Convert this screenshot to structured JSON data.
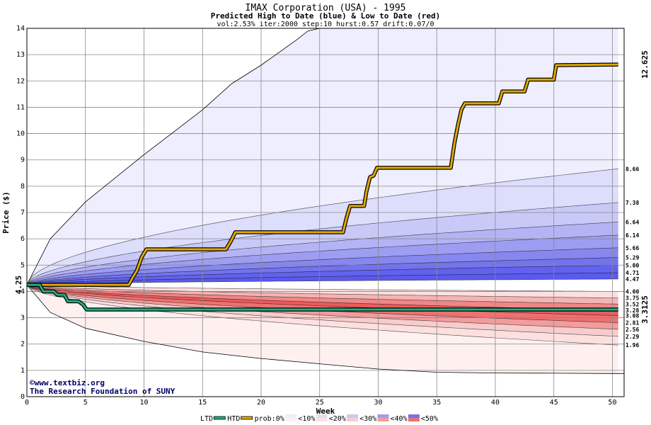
{
  "chart_data": {
    "type": "area",
    "title": "IMAX Corporation (USA) - 1995",
    "subtitle": "Predicted High to Date (blue) &  Low to Date (red)",
    "params": "vol:2.53% iter:2000 step:10 hurst:0.57 drift:0.07/0",
    "xlabel": "Week",
    "ylabel": "Price ($)",
    "xlim": [
      0,
      51
    ],
    "ylim": [
      0,
      14
    ],
    "x_ticks": [
      0,
      5,
      10,
      15,
      20,
      25,
      30,
      35,
      40,
      45,
      50
    ],
    "y_ticks": [
      0,
      1,
      2,
      3,
      4,
      5,
      6,
      7,
      8,
      9,
      10,
      11,
      12,
      13,
      14
    ],
    "grid": true,
    "start_price": 4.25,
    "start_label": "4.25",
    "final_high": 12.625,
    "final_high_label": "12.625",
    "final_low": 3.3125,
    "final_low_label": "3.3125",
    "right_labels": [
      {
        "value": 8.66,
        "label": "8.66"
      },
      {
        "value": 7.38,
        "label": "7.38"
      },
      {
        "value": 6.64,
        "label": "6.64"
      },
      {
        "value": 6.14,
        "label": "6.14"
      },
      {
        "value": 5.66,
        "label": "5.66"
      },
      {
        "value": 5.29,
        "label": "5.29"
      },
      {
        "value": 5.0,
        "label": "5.00"
      },
      {
        "value": 4.71,
        "label": "4.71"
      },
      {
        "value": 4.47,
        "label": "4.47"
      },
      {
        "value": 4.0,
        "label": "4.00"
      },
      {
        "value": 3.75,
        "label": "3.75"
      },
      {
        "value": 3.52,
        "label": "3.52"
      },
      {
        "value": 3.28,
        "label": "3.28"
      },
      {
        "value": 3.08,
        "label": "3.08"
      },
      {
        "value": 2.81,
        "label": "2.81"
      },
      {
        "value": 2.56,
        "label": "2.56"
      },
      {
        "value": 2.29,
        "label": "2.29"
      },
      {
        "value": 1.96,
        "label": "1.96"
      }
    ],
    "envelope_high": [
      [
        0,
        4.25
      ],
      [
        2,
        6.0
      ],
      [
        5,
        7.4
      ],
      [
        10,
        9.2
      ],
      [
        15,
        10.9
      ],
      [
        17.5,
        11.9
      ],
      [
        20,
        12.6
      ],
      [
        23,
        13.55
      ],
      [
        24,
        13.9
      ],
      [
        25,
        14.0
      ]
    ],
    "envelope_low": [
      [
        0,
        4.25
      ],
      [
        2,
        3.2
      ],
      [
        5,
        2.6
      ],
      [
        10,
        2.1
      ],
      [
        15,
        1.7
      ],
      [
        20,
        1.45
      ],
      [
        25,
        1.25
      ],
      [
        30,
        1.05
      ],
      [
        35,
        0.93
      ],
      [
        40,
        0.9
      ],
      [
        45,
        0.89
      ],
      [
        50,
        0.88
      ],
      [
        51,
        0.88
      ]
    ],
    "series": [
      {
        "name": "HTD",
        "color": "#e0a800",
        "points": [
          [
            0,
            4.25
          ],
          [
            8.7,
            4.25
          ],
          [
            9.0,
            4.5
          ],
          [
            9.4,
            4.8
          ],
          [
            9.8,
            5.3
          ],
          [
            10.2,
            5.6
          ],
          [
            17.0,
            5.6
          ],
          [
            17.4,
            5.9
          ],
          [
            17.8,
            6.25
          ],
          [
            27.0,
            6.25
          ],
          [
            27.3,
            6.8
          ],
          [
            27.6,
            7.25
          ],
          [
            28.8,
            7.25
          ],
          [
            29.0,
            7.8
          ],
          [
            29.3,
            8.35
          ],
          [
            29.6,
            8.4
          ],
          [
            29.9,
            8.7
          ],
          [
            36.2,
            8.7
          ],
          [
            36.5,
            9.6
          ],
          [
            36.8,
            10.3
          ],
          [
            37.1,
            10.9
          ],
          [
            37.4,
            11.15
          ],
          [
            40.3,
            11.15
          ],
          [
            40.6,
            11.6
          ],
          [
            42.5,
            11.6
          ],
          [
            42.8,
            12.05
          ],
          [
            45.0,
            12.05
          ],
          [
            45.2,
            12.6
          ],
          [
            50.5,
            12.625
          ]
        ]
      },
      {
        "name": "LTD",
        "color": "#20b080",
        "points": [
          [
            0,
            4.25
          ],
          [
            1.1,
            4.25
          ],
          [
            1.4,
            4.0
          ],
          [
            2.3,
            4.0
          ],
          [
            2.6,
            3.875
          ],
          [
            3.2,
            3.875
          ],
          [
            3.5,
            3.625
          ],
          [
            4.4,
            3.625
          ],
          [
            4.8,
            3.5
          ],
          [
            5.1,
            3.3125
          ],
          [
            50.5,
            3.3125
          ]
        ]
      }
    ],
    "legend": {
      "placement": "bottom",
      "items": [
        "LTD",
        "HTD",
        "prob:0%",
        "<10%",
        "<20%",
        "<30%",
        "<40%",
        "<50%"
      ]
    },
    "credit_line1": "©www.textbiz.org",
    "credit_line2": "The Research Foundation of SUNY"
  },
  "colors": {
    "band_blue_outer": "#eeeeff",
    "band_blue_inner": "#5a5aee",
    "band_red_outer": "#fff0f0",
    "band_red_inner": "#ee5a5a",
    "grid": "#888888",
    "htd": "#e0a800",
    "ltd": "#20b080",
    "high_label": "#b8860b",
    "low_label": "#209070"
  }
}
